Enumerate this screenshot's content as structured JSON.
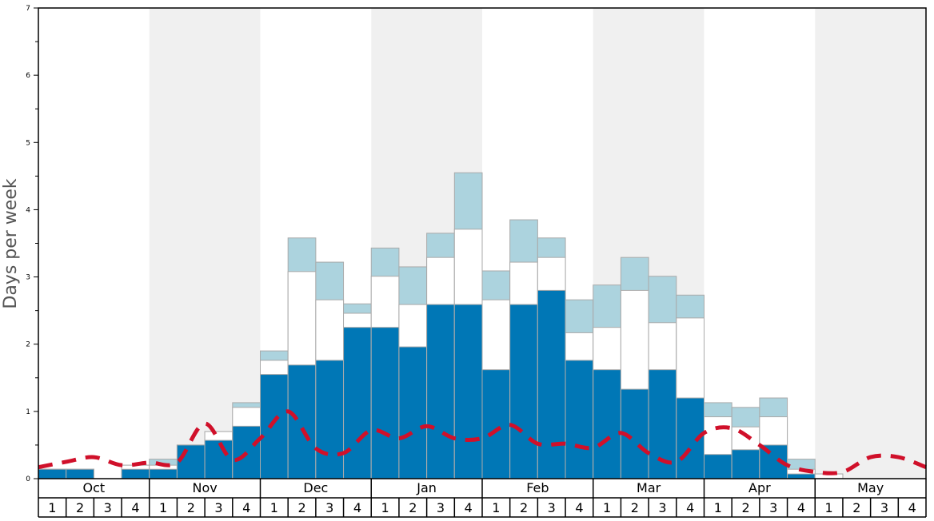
{
  "chart_data": {
    "type": "bar",
    "stacked": true,
    "ylabel": "Days per week",
    "ylim": [
      0,
      7
    ],
    "yticks": [
      "0",
      "1",
      "2",
      "3",
      "4",
      "5",
      "6",
      "7"
    ],
    "months": [
      "Oct",
      "Nov",
      "Dec",
      "Jan",
      "Feb",
      "Mar",
      "Apr",
      "May"
    ],
    "week_labels": [
      "1",
      "2",
      "3",
      "4"
    ],
    "colors": {
      "dark": "#0077b6",
      "middle": "#ffffff",
      "light": "#acd3de",
      "line": "#d0102a",
      "shade": "#f0f0f0"
    },
    "series": [
      {
        "name": "dark",
        "cumulative_values": [
          0.14,
          0.14,
          0,
          0.14,
          0.14,
          0.5,
          0.57,
          0.78,
          1.55,
          1.69,
          1.76,
          2.25,
          2.25,
          1.96,
          2.59,
          2.59,
          1.62,
          2.59,
          2.8,
          1.76,
          1.62,
          1.33,
          1.62,
          1.2,
          0.36,
          0.43,
          0.5,
          0.07,
          0,
          0,
          0,
          0
        ]
      },
      {
        "name": "middle",
        "cumulative_values": [
          0.14,
          0.14,
          0,
          0.2,
          0.2,
          0.5,
          0.7,
          1.06,
          1.76,
          3.08,
          2.66,
          2.46,
          3.01,
          2.59,
          3.29,
          3.71,
          2.66,
          3.22,
          3.29,
          2.17,
          2.25,
          2.8,
          2.32,
          2.39,
          0.92,
          0.77,
          0.92,
          0.14,
          0.07,
          0,
          0,
          0
        ]
      },
      {
        "name": "light",
        "cumulative_values": [
          0.14,
          0.14,
          0,
          0.2,
          0.29,
          0.5,
          0.7,
          1.13,
          1.9,
          3.58,
          3.22,
          2.6,
          3.43,
          3.15,
          3.65,
          4.55,
          3.09,
          3.85,
          3.58,
          2.66,
          2.88,
          3.29,
          3.01,
          2.73,
          1.13,
          1.06,
          1.2,
          0.29,
          0.07,
          0,
          0,
          0
        ]
      }
    ],
    "line": {
      "name": "average",
      "style": "dashed",
      "values_at_week_boundaries": [
        0.17,
        0.25,
        0.32,
        0.2,
        0.24,
        0.24,
        0.82,
        0.28,
        0.6,
        1.0,
        0.45,
        0.38,
        0.72,
        0.6,
        0.78,
        0.6,
        0.6,
        0.8,
        0.52,
        0.52,
        0.46,
        0.68,
        0.38,
        0.25,
        0.68,
        0.75,
        0.5,
        0.2,
        0.1,
        0.1,
        0.32,
        0.32,
        0.17
      ]
    }
  }
}
